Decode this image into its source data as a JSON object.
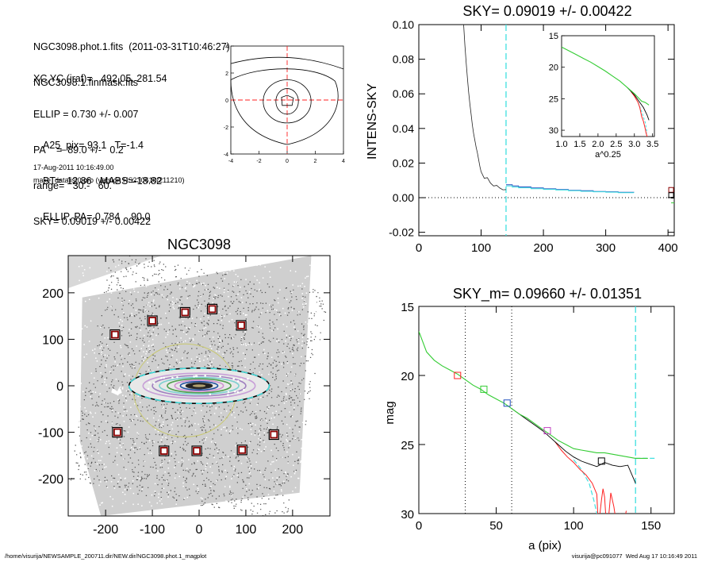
{
  "header": {
    "file_line": "NGC3098.phot.1.fits  (2011-03-31T10:46:27)",
    "mask_line": "NGC3098.1.finmask.fits"
  },
  "fit_params": [
    "XC,YC (iraf)=   492.05, 281.54",
    "ELLIP = 0.730 +/- 0.007",
    "PA    =  89.0 +/-   0.2",
    "range=   30.-   60.",
    "SKY= 0.09019 +/- 0.00422"
  ],
  "derived_params": [
    "A25_pix= 93.1   T=-1.4",
    "BT=  12.86   MABS=-18.82",
    "ELLIP, PA= 0.784    90.0"
  ],
  "run_info": {
    "date": "17-Aug-2011 10:16:49.00",
    "program": "make_datalist0.pro (version HS230610/211210)"
  },
  "footer": {
    "path": "/home/visurija/NEWSAMPLE_200711.dir/NEW.dir/NGC3098.phot.1_magplot",
    "user": "visurija@pc091077  Wed Aug 17 10:16:49 2011"
  },
  "colors": {
    "cyan_dashed": "#40e0e0",
    "green": "#33cc33",
    "red": "#ff2020",
    "blue": "#1f4fbf",
    "magenta": "#c040c0",
    "box_darkred": "#8b0000",
    "ellipse_outline": "#40e0e0",
    "halo_yellow": "#c8c870"
  },
  "chart_data": [
    {
      "id": "contour",
      "type": "contour",
      "xlim": [
        -4,
        4
      ],
      "ylim": [
        -4,
        4
      ],
      "xticks": [
        "-4",
        "-2",
        "0",
        "2",
        "4"
      ],
      "yticks": [
        "4",
        "2",
        "0",
        "-2",
        "-4"
      ],
      "crosshair_color": "#ff2020"
    },
    {
      "id": "sky",
      "type": "line",
      "title": "SKY= 0.09019 +/- 0.00422",
      "xlabel": "",
      "ylabel": "INTENS-SKY",
      "xlim": [
        0,
        410
      ],
      "ylim": [
        -0.022,
        0.1
      ],
      "xticks": [
        "0",
        "100",
        "200",
        "300",
        "400"
      ],
      "yticks": [
        "0.10",
        "0.08",
        "0.06",
        "0.04",
        "0.02",
        "0.00",
        "-0.02"
      ],
      "vline_x": 140,
      "profile": {
        "x": [
          72,
          74,
          76,
          78,
          80,
          82,
          84,
          86,
          88,
          90,
          92,
          94,
          96,
          98,
          100,
          105,
          110,
          115,
          120,
          125,
          130,
          135,
          140
        ],
        "y": [
          0.1,
          0.088,
          0.078,
          0.069,
          0.061,
          0.054,
          0.048,
          0.042,
          0.037,
          0.033,
          0.029,
          0.026,
          0.022,
          0.018,
          0.015,
          0.0125,
          0.0105,
          0.009,
          0.0075,
          0.0065,
          0.0055,
          0.005,
          0.004
        ]
      },
      "outer_blue": {
        "x": [
          140,
          150,
          160,
          180,
          200,
          220,
          240,
          260,
          280,
          300,
          320,
          345
        ],
        "y": [
          0.0075,
          0.0068,
          0.0062,
          0.0056,
          0.0051,
          0.0047,
          0.0043,
          0.004,
          0.0036,
          0.0034,
          0.0031,
          0.003
        ]
      },
      "outer_cyan": {
        "x": [
          140,
          150,
          160,
          180,
          200,
          220,
          240,
          260,
          280,
          300,
          320,
          345
        ],
        "y": [
          0.0068,
          0.0061,
          0.0057,
          0.0052,
          0.0048,
          0.0044,
          0.004,
          0.0037,
          0.0034,
          0.0032,
          0.0029,
          0.0028
        ]
      },
      "markers": [
        {
          "x": 405,
          "y": 0.0045,
          "color": "#8b0000"
        },
        {
          "x": 405,
          "y": 0.0015,
          "color": "#000000"
        }
      ],
      "inset": {
        "xlabel": "a^0.25",
        "xlim": [
          1.0,
          3.55
        ],
        "ylim": [
          15,
          31
        ],
        "xticks": [
          "1.0",
          "1.5",
          "2.0",
          "2.5",
          "3.0",
          "3.5"
        ],
        "yticks": [
          "15",
          "20",
          "25",
          "30"
        ],
        "green": {
          "x": [
            1.0,
            1.2,
            1.4,
            1.6,
            1.8,
            2.0,
            2.2,
            2.4,
            2.6,
            2.8,
            3.0,
            3.1,
            3.2,
            3.3,
            3.35,
            3.4
          ],
          "y": [
            16.8,
            17.4,
            18.0,
            18.6,
            19.2,
            19.9,
            20.6,
            21.4,
            22.2,
            23.2,
            24.2,
            24.8,
            25.4,
            25.6,
            25.8,
            26.0
          ]
        },
        "black": {
          "x": [
            2.8,
            3.0,
            3.1,
            3.2,
            3.25,
            3.3,
            3.35,
            3.4
          ],
          "y": [
            23.2,
            24.4,
            25.2,
            26.0,
            26.4,
            27.0,
            27.6,
            28.4
          ]
        },
        "red": {
          "x": [
            2.9,
            3.0,
            3.1,
            3.15,
            3.2,
            3.25,
            3.3,
            3.32,
            3.35
          ],
          "y": [
            23.8,
            24.6,
            25.6,
            26.4,
            27.8,
            28.6,
            29.8,
            30.4,
            31.0
          ]
        },
        "cyan_dashed": {
          "x": [
            3.1,
            3.2,
            3.3,
            3.35
          ],
          "y": [
            25.6,
            27.0,
            28.8,
            30.5
          ]
        }
      }
    },
    {
      "id": "image",
      "type": "image",
      "title": "NGC3098",
      "xlim": [
        -280,
        280
      ],
      "ylim": [
        -280,
        280
      ],
      "xticks": [
        "-200",
        "-100",
        "0",
        "100",
        "200"
      ],
      "yticks": [
        "200",
        "100",
        "0",
        "-100",
        "-200"
      ],
      "boxes": [
        {
          "x": -180,
          "y": 110
        },
        {
          "x": -100,
          "y": 140
        },
        {
          "x": -30,
          "y": 158
        },
        {
          "x": 28,
          "y": 165
        },
        {
          "x": 90,
          "y": 130
        },
        {
          "x": -175,
          "y": -100
        },
        {
          "x": -75,
          "y": -140
        },
        {
          "x": -5,
          "y": -140
        },
        {
          "x": 92,
          "y": -138
        },
        {
          "x": 160,
          "y": -105
        }
      ]
    },
    {
      "id": "mag",
      "type": "line",
      "title": "SKY_m=  0.09660 +/- 0.01351",
      "xlabel": "a (pix)",
      "ylabel": "mag",
      "xlim": [
        0,
        165
      ],
      "ylim": [
        30,
        15
      ],
      "xticks": [
        "0",
        "50",
        "100",
        "150"
      ],
      "yticks": [
        "15",
        "20",
        "25",
        "30"
      ],
      "dotted_vlines": [
        30,
        60
      ],
      "cyan_vline": 140,
      "green": {
        "x": [
          0,
          5,
          10,
          15,
          20,
          25,
          30,
          35,
          40,
          45,
          50,
          55,
          60,
          65,
          70,
          75,
          80,
          85,
          90,
          95,
          100,
          105,
          110,
          115,
          120,
          125,
          130,
          135,
          140,
          148
        ],
        "y": [
          16.8,
          18.3,
          18.9,
          19.3,
          19.6,
          19.9,
          20.3,
          20.7,
          21.0,
          21.4,
          21.7,
          22.0,
          22.4,
          22.8,
          23.1,
          23.5,
          23.9,
          24.3,
          24.7,
          25.0,
          25.3,
          25.4,
          25.5,
          25.6,
          25.6,
          25.7,
          25.8,
          25.9,
          26.0,
          26.0
        ]
      },
      "black": {
        "x": [
          60,
          65,
          70,
          75,
          80,
          85,
          90,
          95,
          100,
          105,
          110,
          115,
          120,
          125,
          130,
          135,
          140
        ],
        "y": [
          22.4,
          22.8,
          23.2,
          23.6,
          24.0,
          24.5,
          25.0,
          25.5,
          25.9,
          26.2,
          26.4,
          26.6,
          26.3,
          26.5,
          26.6,
          26.5,
          27.8
        ]
      },
      "red": {
        "x": [
          88,
          92,
          96,
          100,
          104,
          108,
          112,
          115,
          116,
          118,
          119,
          120,
          121,
          122,
          124,
          126,
          128,
          130,
          132,
          134
        ],
        "y": [
          24.8,
          25.4,
          25.9,
          26.3,
          26.8,
          27.2,
          27.8,
          28.6,
          31.0,
          29.0,
          28.2,
          28.8,
          30.5,
          31.0,
          28.5,
          29.5,
          31.0,
          30.0,
          31.0,
          29.8
        ]
      },
      "cyan_dashed": {
        "x": [
          100,
          105,
          110,
          113,
          116,
          118
        ],
        "y": [
          26.1,
          26.8,
          27.8,
          29.0,
          30.5,
          31.0
        ]
      },
      "cyan_hline": {
        "x": [
          140,
          153
        ],
        "y": 26.0
      },
      "markers": [
        {
          "x": 25,
          "y": 20.0,
          "color": "#ff2020"
        },
        {
          "x": 42,
          "y": 21.0,
          "color": "#33cc33"
        },
        {
          "x": 57,
          "y": 22.0,
          "color": "#1f4fbf"
        },
        {
          "x": 83,
          "y": 24.0,
          "color": "#c040c0"
        },
        {
          "x": 118,
          "y": 26.2,
          "color": "#000000"
        }
      ]
    }
  ]
}
